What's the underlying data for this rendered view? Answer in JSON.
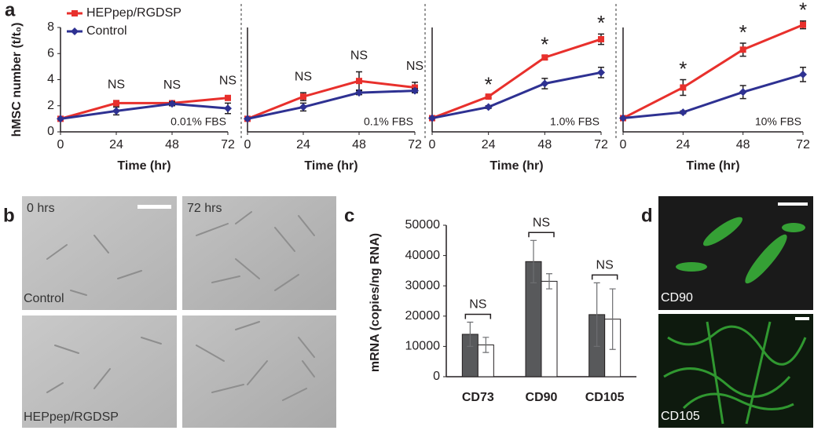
{
  "panel_labels": [
    "a",
    "b",
    "c",
    "d"
  ],
  "chart_data": [
    {
      "type": "line",
      "annotation": "0.01% FBS",
      "xlabel": "Time (hr)",
      "ylabel": "hMSC number (t/t₀)",
      "x": [
        0,
        24,
        48,
        72
      ],
      "xlim": [
        0,
        72
      ],
      "xticks": [
        0,
        24,
        48,
        72
      ],
      "ylim": [
        0,
        8
      ],
      "yticks": [
        0,
        2,
        4,
        6,
        8
      ],
      "legend": "upper left",
      "series": [
        {
          "name": "HEPpep/RGDSP",
          "color": "#e8302c",
          "marker": "square",
          "values": [
            1,
            2.2,
            2.2,
            2.6
          ],
          "errors": [
            0,
            0.2,
            0.15,
            0.1
          ]
        },
        {
          "name": "Control",
          "color": "#2e3192",
          "marker": "diamond",
          "values": [
            1,
            1.6,
            2.15,
            1.8
          ],
          "errors": [
            0,
            0.3,
            0.15,
            0.4
          ]
        }
      ],
      "significance": [
        null,
        "NS",
        "NS",
        "NS"
      ]
    },
    {
      "type": "line",
      "annotation": "0.1% FBS",
      "xlabel": "Time (hr)",
      "x": [
        0,
        24,
        48,
        72
      ],
      "xlim": [
        0,
        72
      ],
      "xticks": [
        0,
        24,
        48,
        72
      ],
      "ylim": [
        0,
        8
      ],
      "series": [
        {
          "color": "#e8302c",
          "marker": "square",
          "values": [
            1,
            2.7,
            3.9,
            3.4
          ],
          "errors": [
            0,
            0.3,
            0.7,
            0.4
          ]
        },
        {
          "color": "#2e3192",
          "marker": "diamond",
          "values": [
            1,
            1.9,
            3.0,
            3.15
          ],
          "errors": [
            0,
            0.3,
            0.15,
            0.15
          ]
        }
      ],
      "significance": [
        null,
        "NS",
        "NS",
        "NS"
      ]
    },
    {
      "type": "line",
      "annotation": "1.0% FBS",
      "xlabel": "Time (hr)",
      "x": [
        0,
        24,
        48,
        72
      ],
      "xlim": [
        0,
        72
      ],
      "xticks": [
        0,
        24,
        48,
        72
      ],
      "ylim": [
        0,
        8
      ],
      "series": [
        {
          "color": "#e8302c",
          "marker": "square",
          "values": [
            1.05,
            2.7,
            5.7,
            7.1
          ],
          "errors": [
            0,
            0.1,
            0.15,
            0.4
          ]
        },
        {
          "color": "#2e3192",
          "marker": "diamond",
          "values": [
            1.05,
            1.9,
            3.7,
            4.55
          ],
          "errors": [
            0,
            0.1,
            0.4,
            0.4
          ]
        }
      ],
      "significance": [
        null,
        "*",
        "*",
        "*"
      ]
    },
    {
      "type": "line",
      "annotation": "10% FBS",
      "xlabel": "Time (hr)",
      "x": [
        0,
        24,
        48,
        72
      ],
      "xlim": [
        0,
        72
      ],
      "xticks": [
        0,
        24,
        48,
        72
      ],
      "ylim": [
        0,
        8
      ],
      "series": [
        {
          "color": "#e8302c",
          "marker": "square",
          "values": [
            1.05,
            3.4,
            6.3,
            8.2
          ],
          "errors": [
            0,
            0.6,
            0.5,
            0.3
          ]
        },
        {
          "color": "#2e3192",
          "marker": "diamond",
          "values": [
            1.05,
            1.5,
            3.05,
            4.4
          ],
          "errors": [
            0,
            0.1,
            0.5,
            0.55
          ]
        }
      ],
      "significance": [
        null,
        "*",
        "*",
        "*"
      ]
    },
    {
      "type": "bar",
      "ylabel": "mRNA (copies/ng RNA)",
      "categories": [
        "CD73",
        "CD90",
        "CD105"
      ],
      "ylim": [
        0,
        50000
      ],
      "yticks": [
        0,
        10000,
        20000,
        30000,
        40000,
        50000
      ],
      "series": [
        {
          "color": "#58595b",
          "values": [
            14000,
            38000,
            20500
          ],
          "errors": [
            4000,
            7000,
            10500
          ]
        },
        {
          "color": "#ffffff",
          "values": [
            10500,
            31500,
            19000
          ],
          "errors": [
            2500,
            2500,
            10000
          ]
        }
      ],
      "significance": [
        "NS",
        "NS",
        "NS"
      ]
    }
  ],
  "micrographs_b": {
    "time_labels": [
      "0 hrs",
      "72 hrs"
    ],
    "row_labels": [
      "Control",
      "HEPpep/RGDSP"
    ]
  },
  "micrographs_d": {
    "labels": [
      "CD90",
      "CD105"
    ]
  }
}
